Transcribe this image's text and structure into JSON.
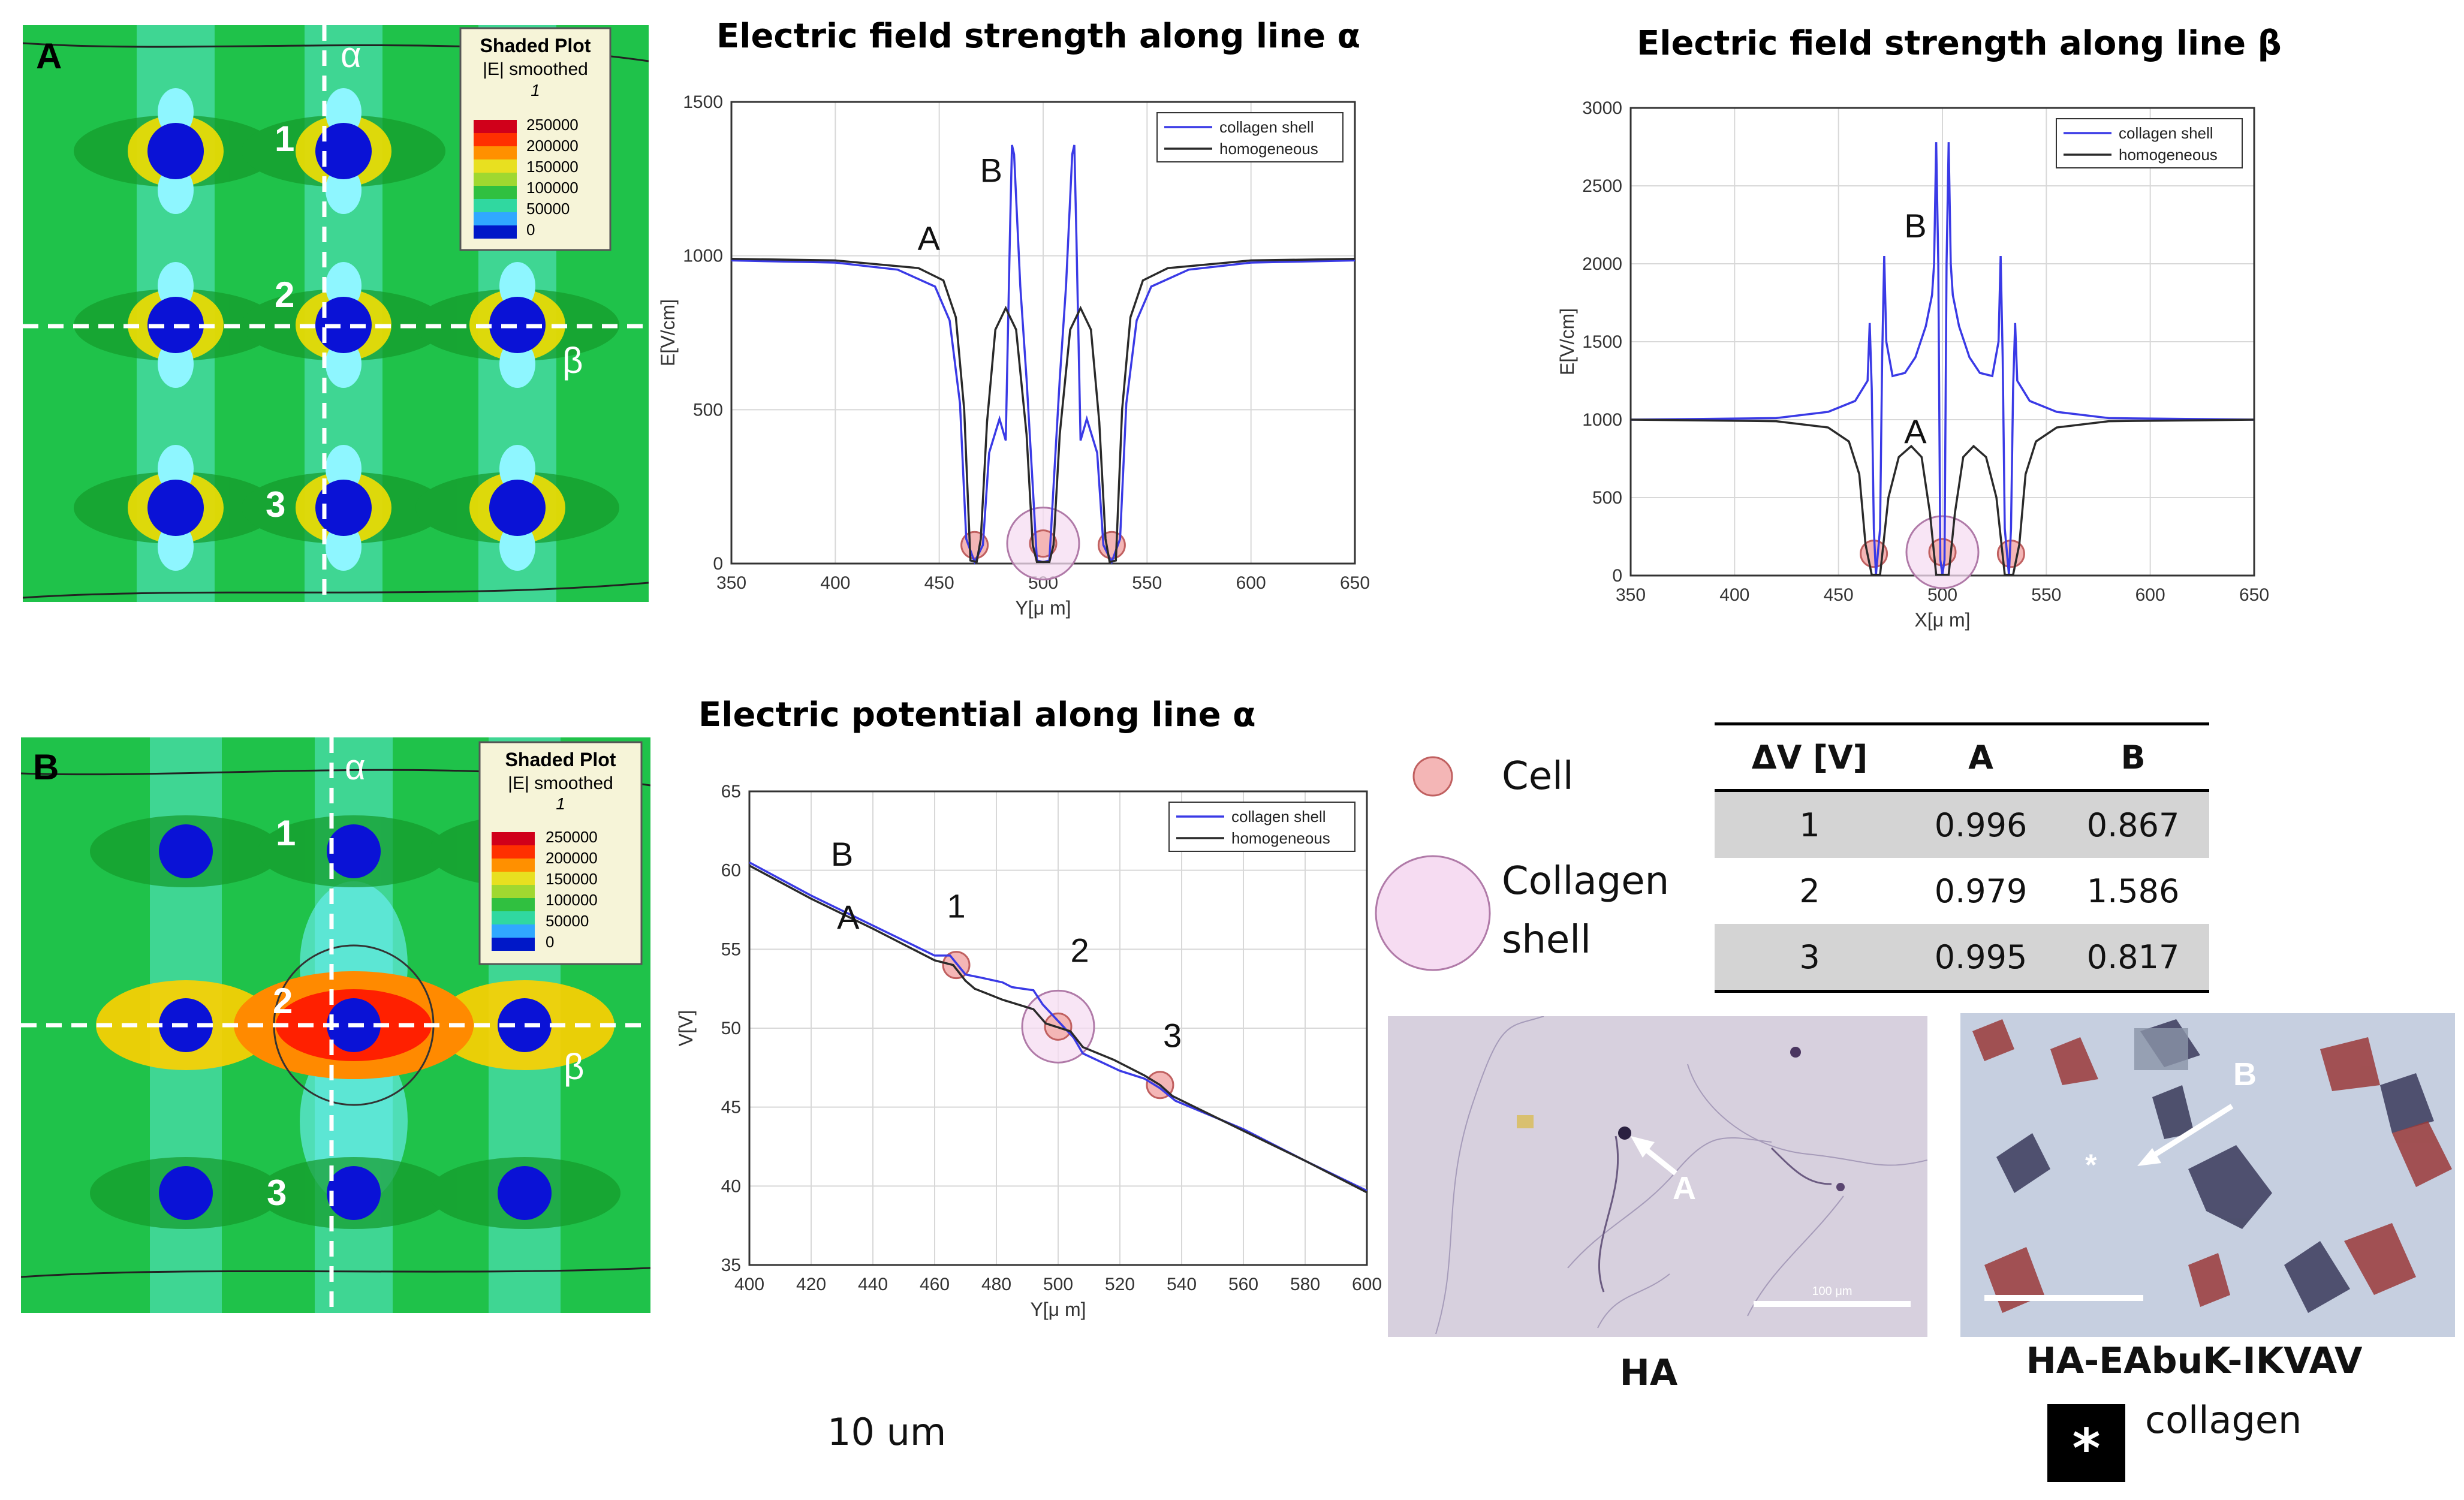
{
  "colors": {
    "collagen_line": "#3a3ae6",
    "homogeneous_line": "#2a2a2a",
    "field_background": "#1fc24a",
    "cell_blue": "#0a12d6",
    "cell_marker_fill": "#f4b6b6",
    "shell_marker_fill": "#f6dcf2"
  },
  "simA": {
    "panel_letter": "A",
    "line_alpha": "α",
    "line_beta": "β",
    "labels": [
      "1",
      "2",
      "3"
    ],
    "legend": {
      "title": "Shaded Plot",
      "subtitle": "|E| smoothed",
      "index": "1",
      "ticks": [
        "250000",
        "200000",
        "150000",
        "100000",
        "50000",
        "0"
      ]
    }
  },
  "simB": {
    "panel_letter": "B",
    "line_alpha": "α",
    "line_beta": "β",
    "labels": [
      "1",
      "2",
      "3"
    ],
    "legend": {
      "title": "Shaded Plot",
      "subtitle": "|E| smoothed",
      "index": "1",
      "ticks": [
        "250000",
        "200000",
        "150000",
        "100000",
        "50000",
        "0"
      ]
    }
  },
  "chart_data": [
    {
      "id": "alpha_field",
      "type": "line",
      "title": "Electric field strength along line α",
      "xlabel": "Y[μ m]",
      "ylabel": "E[V/cm]",
      "xlim": [
        350,
        650
      ],
      "ylim": [
        0,
        1500
      ],
      "xticks": [
        350,
        400,
        450,
        500,
        550,
        600,
        650
      ],
      "yticks": [
        0,
        500,
        1000,
        1500
      ],
      "legend": [
        "collagen shell",
        "homogeneous"
      ],
      "annotations": [
        {
          "text": "A",
          "x": 445,
          "y": 1020
        },
        {
          "text": "B",
          "x": 475,
          "y": 1240
        }
      ],
      "series": [
        {
          "name": "collagen shell",
          "points": [
            [
              350,
              985
            ],
            [
              400,
              978
            ],
            [
              430,
              955
            ],
            [
              448,
              900
            ],
            [
              455,
              790
            ],
            [
              460,
              520
            ],
            [
              463,
              80
            ],
            [
              467,
              5
            ],
            [
              471,
              60
            ],
            [
              474,
              360
            ],
            [
              479,
              470
            ],
            [
              482,
              400
            ],
            [
              484,
              1060
            ],
            [
              485,
              1360
            ],
            [
              486,
              1330
            ],
            [
              489,
              900
            ],
            [
              492,
              600
            ],
            [
              495,
              250
            ],
            [
              497,
              10
            ],
            [
              500,
              5
            ],
            [
              503,
              10
            ],
            [
              505,
              250
            ],
            [
              508,
              600
            ],
            [
              511,
              900
            ],
            [
              514,
              1330
            ],
            [
              515,
              1360
            ],
            [
              516,
              1060
            ],
            [
              518,
              400
            ],
            [
              521,
              470
            ],
            [
              526,
              360
            ],
            [
              529,
              60
            ],
            [
              533,
              5
            ],
            [
              537,
              80
            ],
            [
              540,
              520
            ],
            [
              545,
              790
            ],
            [
              552,
              900
            ],
            [
              570,
              955
            ],
            [
              600,
              978
            ],
            [
              650,
              985
            ]
          ]
        },
        {
          "name": "homogeneous",
          "points": [
            [
              350,
              990
            ],
            [
              400,
              985
            ],
            [
              440,
              960
            ],
            [
              452,
              920
            ],
            [
              458,
              800
            ],
            [
              462,
              500
            ],
            [
              465,
              10
            ],
            [
              468,
              5
            ],
            [
              470,
              80
            ],
            [
              473,
              460
            ],
            [
              477,
              760
            ],
            [
              482,
              830
            ],
            [
              487,
              760
            ],
            [
              492,
              420
            ],
            [
              495,
              60
            ],
            [
              497,
              5
            ],
            [
              503,
              5
            ],
            [
              505,
              60
            ],
            [
              508,
              420
            ],
            [
              513,
              760
            ],
            [
              518,
              830
            ],
            [
              523,
              760
            ],
            [
              527,
              460
            ],
            [
              530,
              80
            ],
            [
              532,
              5
            ],
            [
              535,
              10
            ],
            [
              538,
              500
            ],
            [
              542,
              800
            ],
            [
              548,
              920
            ],
            [
              560,
              960
            ],
            [
              600,
              985
            ],
            [
              650,
              990
            ]
          ]
        }
      ],
      "markers": [
        {
          "x": 467,
          "y": 60,
          "kind": "cell"
        },
        {
          "x": 500,
          "y": 65,
          "kind": "shell"
        },
        {
          "x": 500,
          "y": 65,
          "kind": "cell"
        },
        {
          "x": 533,
          "y": 60,
          "kind": "cell"
        }
      ]
    },
    {
      "id": "beta_field",
      "type": "line",
      "title": "Electric field strength along line β",
      "xlabel": "X[μ m]",
      "ylabel": "E[V/cm]",
      "xlim": [
        350,
        650
      ],
      "ylim": [
        0,
        3000
      ],
      "xticks": [
        350,
        400,
        450,
        500,
        550,
        600,
        650
      ],
      "yticks": [
        0,
        500,
        1000,
        1500,
        2000,
        2500,
        3000
      ],
      "legend": [
        "collagen shell",
        "homogeneous"
      ],
      "annotations": [
        {
          "text": "B",
          "x": 487,
          "y": 2170
        },
        {
          "text": "A",
          "x": 487,
          "y": 850
        }
      ],
      "series": [
        {
          "name": "collagen shell",
          "points": [
            [
              350,
              1000
            ],
            [
              420,
              1010
            ],
            [
              445,
              1050
            ],
            [
              458,
              1120
            ],
            [
              464,
              1250
            ],
            [
              465,
              1620
            ],
            [
              466,
              1200
            ],
            [
              467,
              300
            ],
            [
              468,
              5
            ],
            [
              470,
              300
            ],
            [
              471,
              1400
            ],
            [
              472,
              2050
            ],
            [
              473,
              1500
            ],
            [
              476,
              1280
            ],
            [
              482,
              1300
            ],
            [
              487,
              1400
            ],
            [
              492,
              1600
            ],
            [
              495,
              1800
            ],
            [
              496,
              2000
            ],
            [
              497,
              2780
            ],
            [
              498,
              2000
            ],
            [
              499,
              100
            ],
            [
              500,
              5
            ],
            [
              501,
              100
            ],
            [
              502,
              2000
            ],
            [
              503,
              2780
            ],
            [
              504,
              2000
            ],
            [
              505,
              1800
            ],
            [
              508,
              1600
            ],
            [
              513,
              1400
            ],
            [
              518,
              1300
            ],
            [
              524,
              1280
            ],
            [
              527,
              1500
            ],
            [
              528,
              2050
            ],
            [
              529,
              1400
            ],
            [
              530,
              300
            ],
            [
              532,
              5
            ],
            [
              533,
              300
            ],
            [
              534,
              1200
            ],
            [
              535,
              1620
            ],
            [
              536,
              1250
            ],
            [
              542,
              1120
            ],
            [
              555,
              1050
            ],
            [
              580,
              1010
            ],
            [
              650,
              1000
            ]
          ]
        },
        {
          "name": "homogeneous",
          "points": [
            [
              350,
              1000
            ],
            [
              420,
              990
            ],
            [
              445,
              950
            ],
            [
              455,
              860
            ],
            [
              460,
              650
            ],
            [
              463,
              200
            ],
            [
              466,
              5
            ],
            [
              470,
              5
            ],
            [
              474,
              500
            ],
            [
              479,
              760
            ],
            [
              485,
              830
            ],
            [
              490,
              760
            ],
            [
              494,
              400
            ],
            [
              497,
              5
            ],
            [
              503,
              5
            ],
            [
              506,
              400
            ],
            [
              510,
              760
            ],
            [
              515,
              830
            ],
            [
              521,
              760
            ],
            [
              526,
              500
            ],
            [
              530,
              5
            ],
            [
              534,
              5
            ],
            [
              537,
              200
            ],
            [
              540,
              650
            ],
            [
              545,
              860
            ],
            [
              555,
              950
            ],
            [
              580,
              990
            ],
            [
              650,
              1000
            ]
          ]
        }
      ],
      "markers": [
        {
          "x": 467,
          "y": 140,
          "kind": "cell"
        },
        {
          "x": 500,
          "y": 150,
          "kind": "shell"
        },
        {
          "x": 500,
          "y": 150,
          "kind": "cell"
        },
        {
          "x": 533,
          "y": 140,
          "kind": "cell"
        }
      ]
    },
    {
      "id": "alpha_potential",
      "type": "line",
      "title": "Electric potential along line α",
      "xlabel": "Y[μ m]",
      "ylabel": "V[V]",
      "xlim": [
        400,
        600
      ],
      "ylim": [
        35,
        65
      ],
      "xticks": [
        400,
        420,
        440,
        460,
        480,
        500,
        520,
        540,
        560,
        580,
        600
      ],
      "yticks": [
        35,
        40,
        45,
        50,
        55,
        60,
        65
      ],
      "legend": [
        "collagen shell",
        "homogeneous"
      ],
      "annotations": [
        {
          "text": "B",
          "x": 430,
          "y": 60.3
        },
        {
          "text": "A",
          "x": 432,
          "y": 56.3
        },
        {
          "text": "1",
          "x": 467,
          "y": 57
        },
        {
          "text": "2",
          "x": 507,
          "y": 54.2
        },
        {
          "text": "3",
          "x": 537,
          "y": 48.8
        }
      ],
      "series": [
        {
          "name": "collagen shell",
          "points": [
            [
              400,
              60.5
            ],
            [
              420,
              58.4
            ],
            [
              440,
              56.5
            ],
            [
              460,
              54.6
            ],
            [
              465,
              54.6
            ],
            [
              470,
              53.4
            ],
            [
              475,
              53.2
            ],
            [
              482,
              52.9
            ],
            [
              485,
              52.6
            ],
            [
              492,
              52.4
            ],
            [
              495,
              51.5
            ],
            [
              505,
              49.4
            ],
            [
              508,
              48.4
            ],
            [
              520,
              47.3
            ],
            [
              528,
              46.8
            ],
            [
              533,
              46.2
            ],
            [
              538,
              45.4
            ],
            [
              560,
              43.6
            ],
            [
              580,
              41.6
            ],
            [
              600,
              39.7
            ]
          ]
        },
        {
          "name": "homogeneous",
          "points": [
            [
              400,
              60.3
            ],
            [
              420,
              58.2
            ],
            [
              440,
              56.3
            ],
            [
              460,
              54.3
            ],
            [
              466,
              54.0
            ],
            [
              470,
              53.0
            ],
            [
              473,
              52.5
            ],
            [
              482,
              51.8
            ],
            [
              492,
              51.2
            ],
            [
              496,
              50.3
            ],
            [
              504,
              49.8
            ],
            [
              508,
              48.8
            ],
            [
              518,
              48.0
            ],
            [
              528,
              47.0
            ],
            [
              533,
              46.4
            ],
            [
              537,
              45.7
            ],
            [
              560,
              43.5
            ],
            [
              580,
              41.6
            ],
            [
              600,
              39.6
            ]
          ]
        }
      ],
      "markers": [
        {
          "x": 467,
          "y": 54.0,
          "kind": "cell"
        },
        {
          "x": 500,
          "y": 50.1,
          "kind": "shell"
        },
        {
          "x": 500,
          "y": 50.1,
          "kind": "cell"
        },
        {
          "x": 533,
          "y": 46.4,
          "kind": "cell"
        }
      ]
    }
  ],
  "marker_legend": {
    "cell": "Cell",
    "collagen_shell_line1": "Collagen",
    "collagen_shell_line2": "shell"
  },
  "dv_table": {
    "headers": [
      "ΔV [V]",
      "A",
      "B"
    ],
    "rows": [
      [
        "1",
        "0.996",
        "0.867"
      ],
      [
        "2",
        "0.979",
        "1.586"
      ],
      [
        "3",
        "0.995",
        "0.817"
      ]
    ]
  },
  "photos": {
    "ha": {
      "arrow_label": "A",
      "scale_text": "100 μm",
      "caption": "HA"
    },
    "ikvav": {
      "arrow_label": "B",
      "asterisk": "*",
      "caption": "HA-EAbuK-IKVAV"
    },
    "asterisk_legend": {
      "symbol": "*",
      "text": "collagen"
    }
  },
  "scale_note": "10 um"
}
